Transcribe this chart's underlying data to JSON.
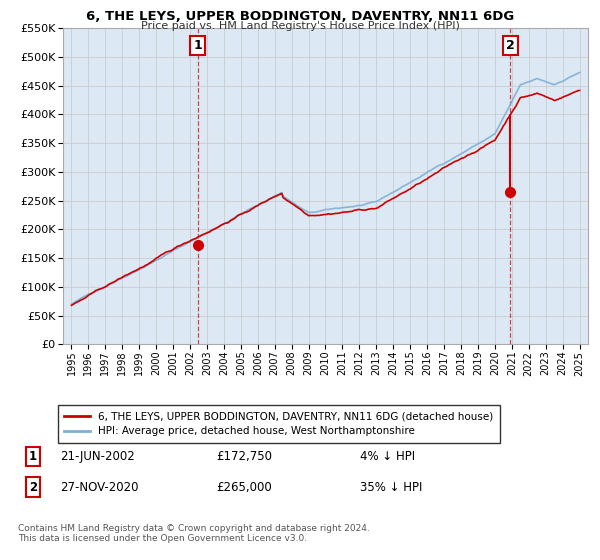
{
  "title": "6, THE LEYS, UPPER BODDINGTON, DAVENTRY, NN11 6DG",
  "subtitle": "Price paid vs. HM Land Registry's House Price Index (HPI)",
  "legend_line1": "6, THE LEYS, UPPER BODDINGTON, DAVENTRY, NN11 6DG (detached house)",
  "legend_line2": "HPI: Average price, detached house, West Northamptonshire",
  "footnote": "Contains HM Land Registry data © Crown copyright and database right 2024.\nThis data is licensed under the Open Government Licence v3.0.",
  "annotation1_date": "21-JUN-2002",
  "annotation1_price": "£172,750",
  "annotation1_hpi": "4% ↓ HPI",
  "annotation2_date": "27-NOV-2020",
  "annotation2_price": "£265,000",
  "annotation2_hpi": "35% ↓ HPI",
  "sale1_x": 2002.47,
  "sale1_y": 172750,
  "sale2_x": 2020.9,
  "sale2_y": 265000,
  "ylim": [
    0,
    550000
  ],
  "xlim": [
    1994.5,
    2025.5
  ],
  "yticks": [
    0,
    50000,
    100000,
    150000,
    200000,
    250000,
    300000,
    350000,
    400000,
    450000,
    500000,
    550000
  ],
  "xticks": [
    1995,
    1996,
    1997,
    1998,
    1999,
    2000,
    2001,
    2002,
    2003,
    2004,
    2005,
    2006,
    2007,
    2008,
    2009,
    2010,
    2011,
    2012,
    2013,
    2014,
    2015,
    2016,
    2017,
    2018,
    2019,
    2020,
    2021,
    2022,
    2023,
    2024,
    2025
  ],
  "red_color": "#cc0000",
  "blue_color": "#7db0d5",
  "grid_color": "#cccccc",
  "bg_color": "#ffffff",
  "plot_bg": "#dce9f5"
}
